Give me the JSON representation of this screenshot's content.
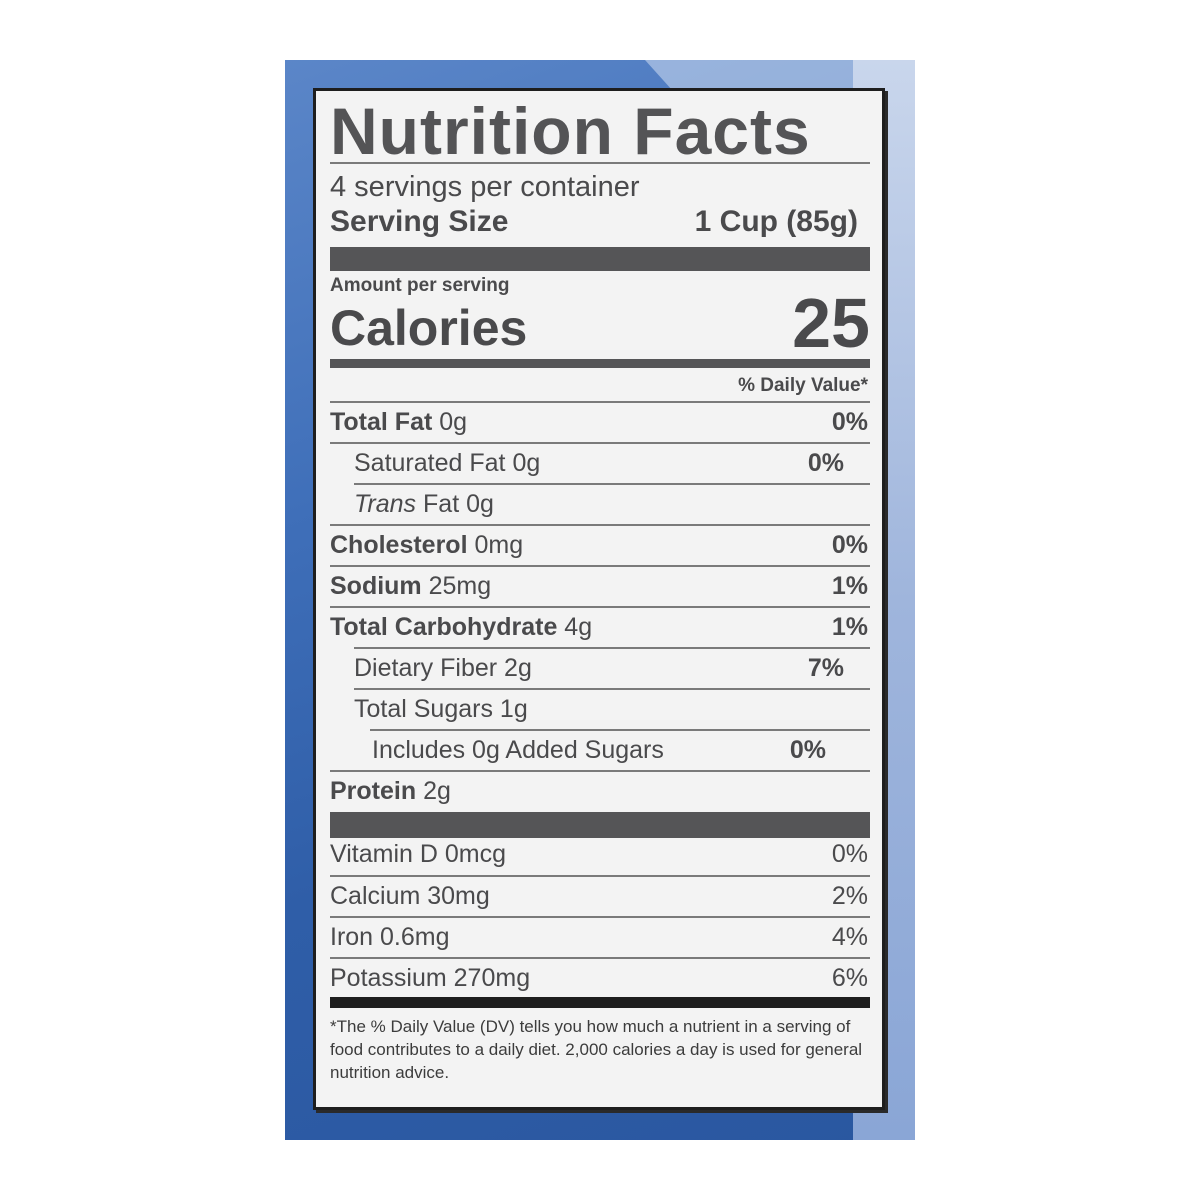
{
  "title": "Nutrition Facts",
  "servings_per_container": "4 servings per container",
  "serving_size_label": "Serving Size",
  "serving_size_value": "1 Cup (85g)",
  "amount_per_serving": "Amount per serving",
  "calories_label": "Calories",
  "calories_value": "25",
  "daily_value_header": "% Daily Value*",
  "nutrients": [
    {
      "name": "Total Fat",
      "amount": "0g",
      "dv": "0%"
    },
    {
      "name": "Saturated Fat",
      "amount": "0g",
      "dv": "0%"
    },
    {
      "name": "Trans",
      "suffix": "Fat 0g",
      "dv": ""
    },
    {
      "name": "Cholesterol",
      "amount": "0mg",
      "dv": "0%"
    },
    {
      "name": "Sodium",
      "amount": "25mg",
      "dv": "1%"
    },
    {
      "name": "Total Carbohydrate",
      "amount": "4g",
      "dv": "1%"
    },
    {
      "name": "Dietary Fiber",
      "amount": "2g",
      "dv": "7%"
    },
    {
      "name": "Total Sugars",
      "amount": "1g",
      "dv": ""
    },
    {
      "name": "Includes 0g Added Sugars",
      "amount": "",
      "dv": "0%"
    },
    {
      "name": "Protein",
      "amount": "2g",
      "dv": ""
    }
  ],
  "vitamins": [
    {
      "name": "Vitamin D 0mcg",
      "dv": "0%"
    },
    {
      "name": "Calcium 30mg",
      "dv": "2%"
    },
    {
      "name": "Iron 0.6mg",
      "dv": "4%"
    },
    {
      "name": "Potassium 270mg",
      "dv": "6%"
    }
  ],
  "footnote": "*The % Daily Value (DV) tells you how much a nutrient in a serving of food contributes to a daily diet. 2,000 calories a day is used for general nutrition advice.",
  "colors": {
    "background_blue": "#2f5ea8",
    "label_bg": "#f3f3f3",
    "text": "#4a4a4c"
  }
}
